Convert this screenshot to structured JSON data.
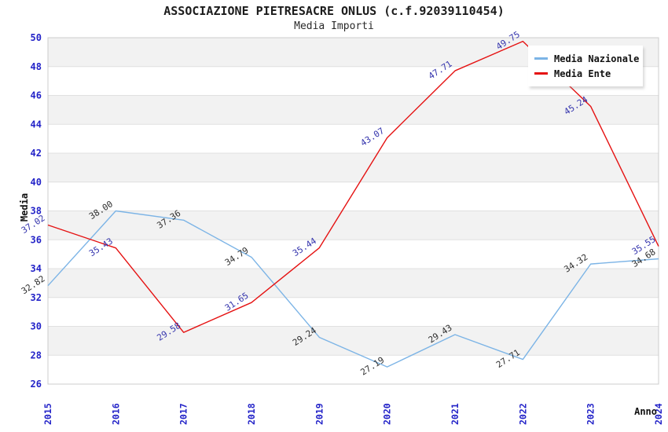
{
  "header": {
    "title": "ASSOCIAZIONE PIETRESACRE ONLUS (c.f.92039110454)",
    "subtitle": "Media Importi"
  },
  "axes": {
    "y_label": "Media",
    "x_label": "Anno",
    "y_ticks": [
      26,
      28,
      30,
      32,
      34,
      36,
      38,
      40,
      42,
      44,
      46,
      48,
      50
    ],
    "x_ticks": [
      "2015",
      "2016",
      "2017",
      "2018",
      "2019",
      "2020",
      "2021",
      "2022",
      "2023",
      "2024"
    ]
  },
  "legend": {
    "items": [
      {
        "label": "Media Nazionale",
        "color": "#7cb4e6"
      },
      {
        "label": "Media Ente",
        "color": "#e51212"
      }
    ]
  },
  "colors": {
    "tick_color": "#2323c8",
    "band_gray": "#f2f2f2",
    "gridline": "#e0e0e0",
    "plot_border": "#cccccc"
  },
  "chart_data": {
    "type": "line",
    "title": "ASSOCIAZIONE PIETRESACRE ONLUS (c.f.92039110454)",
    "subtitle": "Media Importi",
    "xlabel": "Anno",
    "ylabel": "Media",
    "categories": [
      "2015",
      "2016",
      "2017",
      "2018",
      "2019",
      "2020",
      "2021",
      "2022",
      "2023",
      "2024"
    ],
    "series": [
      {
        "name": "Media Nazionale",
        "key": "media-nazionale",
        "color": "#7cb4e6",
        "label_color": "#2e2e2e",
        "values": [
          32.82,
          38.0,
          37.36,
          34.79,
          29.24,
          27.19,
          29.43,
          27.71,
          34.32,
          34.68
        ],
        "labels": [
          "32.82",
          "38.00",
          "37.36",
          "34.79",
          "29.24",
          "27.19",
          "29.43",
          "27.71",
          "34.32",
          "34.68"
        ]
      },
      {
        "name": "Media Ente",
        "key": "media-ente",
        "color": "#e51212",
        "label_color": "#3434ad",
        "values": [
          37.02,
          35.43,
          29.58,
          31.65,
          35.44,
          43.07,
          47.71,
          49.75,
          45.24,
          35.55
        ],
        "labels": [
          "37.02",
          "35.43",
          "29.58",
          "31.65",
          "35.44",
          "43.07",
          "47.71",
          "49.75",
          "45.24",
          "35.55"
        ]
      }
    ],
    "ylim": [
      26,
      50
    ],
    "y_tick_step": 2,
    "grid": "horizontal-bands-alternating",
    "legend_position": "top-right"
  }
}
